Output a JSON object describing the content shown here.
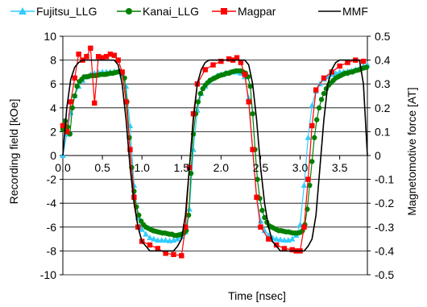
{
  "chart_data": {
    "type": "line",
    "xlabel": "Time [nsec]",
    "ylabel": "Recording field [kOe]",
    "y2label": "Magnetomotive force [AT]",
    "xlim": [
      0,
      3.85
    ],
    "ylim": [
      -10,
      10
    ],
    "y2lim": [
      -0.5,
      0.5
    ],
    "x_ticks": [
      "0.0",
      "0.5",
      "1.0",
      "1.5",
      "2.0",
      "2.5",
      "3.0",
      "3.5"
    ],
    "x_tick_values": [
      0,
      0.5,
      1.0,
      1.5,
      2.0,
      2.5,
      3.0,
      3.5
    ],
    "y_ticks": [
      "10",
      "8",
      "6",
      "4",
      "2",
      "0",
      "-2",
      "-4",
      "-6",
      "-8",
      "-10"
    ],
    "y_tick_values": [
      10,
      8,
      6,
      4,
      2,
      0,
      -2,
      -4,
      -6,
      -8,
      -10
    ],
    "y2_ticks": [
      "0.5",
      "0.4",
      "0.3",
      "0.2",
      "0.1",
      "0",
      "-0.1",
      "-0.2",
      "-0.3",
      "-0.4",
      "-0.5"
    ],
    "y2_tick_values": [
      0.5,
      0.4,
      0.3,
      0.2,
      0.1,
      0,
      -0.1,
      -0.2,
      -0.3,
      -0.4,
      -0.5
    ],
    "grid": "horizontal",
    "legend": "top",
    "series": [
      {
        "name": "Fujitsu_LLG",
        "color": "#33CCFF",
        "marker": "triangle",
        "axis": "left",
        "x": [
          0.0,
          0.05,
          0.1,
          0.15,
          0.2,
          0.25,
          0.3,
          0.35,
          0.4,
          0.45,
          0.5,
          0.55,
          0.6,
          0.65,
          0.7,
          0.75,
          0.8,
          0.85,
          0.9,
          0.95,
          1.0,
          1.05,
          1.1,
          1.15,
          1.2,
          1.25,
          1.3,
          1.35,
          1.4,
          1.45,
          1.5,
          1.55,
          1.6,
          1.65,
          1.7,
          1.75,
          1.8,
          1.85,
          1.9,
          1.95,
          2.0,
          2.05,
          2.1,
          2.15,
          2.2,
          2.25,
          2.3,
          2.35,
          2.4,
          2.45,
          2.5,
          2.55,
          2.6,
          2.65,
          2.7,
          2.75,
          2.8,
          2.85,
          2.9,
          2.95,
          3.0,
          3.05,
          3.1,
          3.15,
          3.2,
          3.25,
          3.3,
          3.35,
          3.4,
          3.45,
          3.5,
          3.55,
          3.6,
          3.65,
          3.7,
          3.75,
          3.8,
          3.85
        ],
        "y": [
          0.0,
          1.8,
          3.6,
          5.0,
          5.8,
          6.3,
          6.6,
          6.8,
          6.9,
          6.95,
          7.0,
          7.0,
          7.0,
          7.05,
          7.0,
          6.8,
          5.8,
          2.5,
          -2.5,
          -5.2,
          -6.2,
          -6.6,
          -6.9,
          -7.0,
          -7.1,
          -7.1,
          -7.1,
          -7.15,
          -7.1,
          -7.0,
          -6.8,
          -6.4,
          -4.5,
          0.5,
          3.8,
          5.2,
          5.8,
          6.2,
          6.5,
          6.7,
          6.8,
          6.9,
          6.95,
          7.0,
          7.0,
          6.9,
          6.6,
          4.8,
          0.5,
          -3.5,
          -5.5,
          -6.3,
          -6.7,
          -6.9,
          -7.0,
          -7.05,
          -7.1,
          -7.1,
          -7.0,
          -6.7,
          -5.8,
          -2.5,
          1.5,
          4.2,
          5.4,
          6.0,
          6.4,
          6.6,
          6.8,
          6.9,
          7.0,
          7.0,
          7.05,
          7.1,
          7.2,
          7.3,
          7.5,
          7.6
        ]
      },
      {
        "name": "Kanai_LLG",
        "color": "#008000",
        "marker": "circle",
        "axis": "left",
        "x": [
          0.0,
          0.03,
          0.06,
          0.09,
          0.12,
          0.15,
          0.18,
          0.21,
          0.24,
          0.27,
          0.3,
          0.33,
          0.36,
          0.39,
          0.42,
          0.45,
          0.48,
          0.51,
          0.54,
          0.57,
          0.6,
          0.63,
          0.66,
          0.69,
          0.72,
          0.75,
          0.78,
          0.81,
          0.84,
          0.87,
          0.9,
          0.93,
          0.96,
          0.99,
          1.02,
          1.05,
          1.08,
          1.11,
          1.14,
          1.17,
          1.2,
          1.23,
          1.26,
          1.29,
          1.32,
          1.35,
          1.38,
          1.41,
          1.44,
          1.47,
          1.5,
          1.53,
          1.56,
          1.59,
          1.62,
          1.65,
          1.68,
          1.71,
          1.74,
          1.77,
          1.8,
          1.83,
          1.86,
          1.89,
          1.92,
          1.95,
          1.98,
          2.01,
          2.04,
          2.07,
          2.1,
          2.13,
          2.16,
          2.19,
          2.22,
          2.25,
          2.28,
          2.31,
          2.34,
          2.37,
          2.4,
          2.43,
          2.46,
          2.49,
          2.52,
          2.55,
          2.58,
          2.61,
          2.64,
          2.67,
          2.7,
          2.73,
          2.76,
          2.79,
          2.82,
          2.85,
          2.88,
          2.91,
          2.94,
          2.97,
          3.0,
          3.03,
          3.06,
          3.09,
          3.12,
          3.15,
          3.18,
          3.21,
          3.24,
          3.27,
          3.3,
          3.33,
          3.36,
          3.39,
          3.42,
          3.45,
          3.48,
          3.51,
          3.54,
          3.57,
          3.6,
          3.63,
          3.66,
          3.69,
          3.72,
          3.75,
          3.78,
          3.81,
          3.84
        ],
        "y": [
          2.2,
          2.9,
          2.4,
          1.8,
          4.0,
          5.0,
          5.8,
          6.2,
          6.4,
          6.6,
          6.6,
          6.65,
          6.7,
          6.7,
          6.7,
          6.75,
          6.8,
          6.8,
          6.8,
          6.85,
          6.9,
          6.9,
          6.95,
          7.0,
          7.05,
          6.9,
          6.5,
          4.5,
          1.5,
          -1.0,
          -3.0,
          -4.3,
          -5.0,
          -5.5,
          -5.8,
          -6.0,
          -6.1,
          -6.2,
          -6.3,
          -6.35,
          -6.4,
          -6.45,
          -6.5,
          -6.5,
          -6.55,
          -6.6,
          -6.6,
          -6.7,
          -6.7,
          -6.65,
          -6.6,
          -6.5,
          -6.3,
          -5.0,
          -1.5,
          1.8,
          3.5,
          4.5,
          5.2,
          5.6,
          5.9,
          6.1,
          6.3,
          6.4,
          6.5,
          6.6,
          6.7,
          6.75,
          6.8,
          6.9,
          6.9,
          7.0,
          7.05,
          7.1,
          7.1,
          7.1,
          7.0,
          6.9,
          6.6,
          5.8,
          3.5,
          0.5,
          -2.0,
          -3.6,
          -4.6,
          -5.2,
          -5.6,
          -5.9,
          -6.0,
          -6.1,
          -6.2,
          -6.3,
          -6.3,
          -6.35,
          -6.4,
          -6.4,
          -6.45,
          -6.5,
          -6.5,
          -6.5,
          -6.45,
          -6.3,
          -5.8,
          -4.5,
          -2.5,
          -0.5,
          1.5,
          3.0,
          4.0,
          4.7,
          5.2,
          5.6,
          5.9,
          6.1,
          6.3,
          6.5,
          6.6,
          6.7,
          6.8,
          6.9,
          6.9,
          7.0,
          7.0,
          7.1,
          7.15,
          7.2,
          7.3,
          7.35,
          7.4
        ]
      },
      {
        "name": "Magpar",
        "color": "#FF0000",
        "marker": "square",
        "axis": "left",
        "x": [
          0.0,
          0.05,
          0.1,
          0.15,
          0.2,
          0.25,
          0.3,
          0.35,
          0.4,
          0.45,
          0.5,
          0.55,
          0.6,
          0.65,
          0.7,
          0.75,
          0.8,
          0.85,
          0.9,
          0.95,
          1.0,
          1.1,
          1.2,
          1.3,
          1.4,
          1.5,
          1.55,
          1.6,
          1.65,
          1.7,
          1.8,
          1.9,
          2.0,
          2.1,
          2.15,
          2.2,
          2.25,
          2.3,
          2.35,
          2.4,
          2.45,
          2.5,
          2.6,
          2.7,
          2.8,
          2.9,
          2.95,
          3.0,
          3.05,
          3.1,
          3.15,
          3.2,
          3.3,
          3.4,
          3.5,
          3.6,
          3.7,
          3.8
        ],
        "y": [
          2.5,
          2.0,
          4.5,
          6.5,
          8.5,
          8.0,
          8.3,
          9.0,
          4.4,
          8.3,
          8.2,
          8.3,
          8.5,
          8.4,
          8.0,
          7.0,
          4.5,
          0.5,
          -3.5,
          -6.0,
          -7.2,
          -7.5,
          -7.8,
          -8.2,
          -8.3,
          -8.4,
          -6.0,
          -1.0,
          3.5,
          6.0,
          7.2,
          7.6,
          7.9,
          8.1,
          8.0,
          8.2,
          7.8,
          6.8,
          4.5,
          0.5,
          -3.5,
          -6.0,
          -7.0,
          -7.5,
          -7.8,
          -7.9,
          -8.0,
          -8.0,
          -6.0,
          -2.0,
          2.5,
          5.5,
          6.5,
          7.0,
          7.5,
          7.8,
          8.0,
          7.9
        ]
      },
      {
        "name": "MMF",
        "color": "#000000",
        "marker": "none",
        "axis": "right",
        "x": [
          0.0,
          0.05,
          0.1,
          0.15,
          0.2,
          0.25,
          0.3,
          0.65,
          0.7,
          0.75,
          0.8,
          0.85,
          0.9,
          0.95,
          1.0,
          1.05,
          1.1,
          1.15,
          1.2,
          1.4,
          1.45,
          1.5,
          1.55,
          1.6,
          1.65,
          1.7,
          1.75,
          1.8,
          1.85,
          1.9,
          1.95,
          2.3,
          2.35,
          2.4,
          2.45,
          2.5,
          2.55,
          2.6,
          2.65,
          2.7,
          2.75,
          2.8,
          2.85,
          3.05,
          3.1,
          3.15,
          3.2,
          3.25,
          3.3,
          3.35,
          3.4,
          3.45,
          3.5,
          3.55,
          3.6,
          3.75,
          3.8,
          3.85
        ],
        "y": [
          0.0,
          0.2,
          0.32,
          0.37,
          0.39,
          0.4,
          0.4,
          0.4,
          0.38,
          0.3,
          0.15,
          -0.05,
          -0.2,
          -0.3,
          -0.36,
          -0.38,
          -0.4,
          -0.4,
          -0.4,
          -0.4,
          -0.38,
          -0.35,
          -0.25,
          -0.05,
          0.15,
          0.3,
          0.36,
          0.39,
          0.4,
          0.4,
          0.4,
          0.4,
          0.38,
          0.3,
          0.15,
          -0.05,
          -0.2,
          -0.3,
          -0.36,
          -0.38,
          -0.4,
          -0.4,
          -0.4,
          -0.4,
          -0.38,
          -0.35,
          -0.25,
          -0.05,
          0.15,
          0.3,
          0.36,
          0.39,
          0.4,
          0.4,
          0.4,
          0.4,
          0.3,
          0.0
        ]
      }
    ]
  }
}
